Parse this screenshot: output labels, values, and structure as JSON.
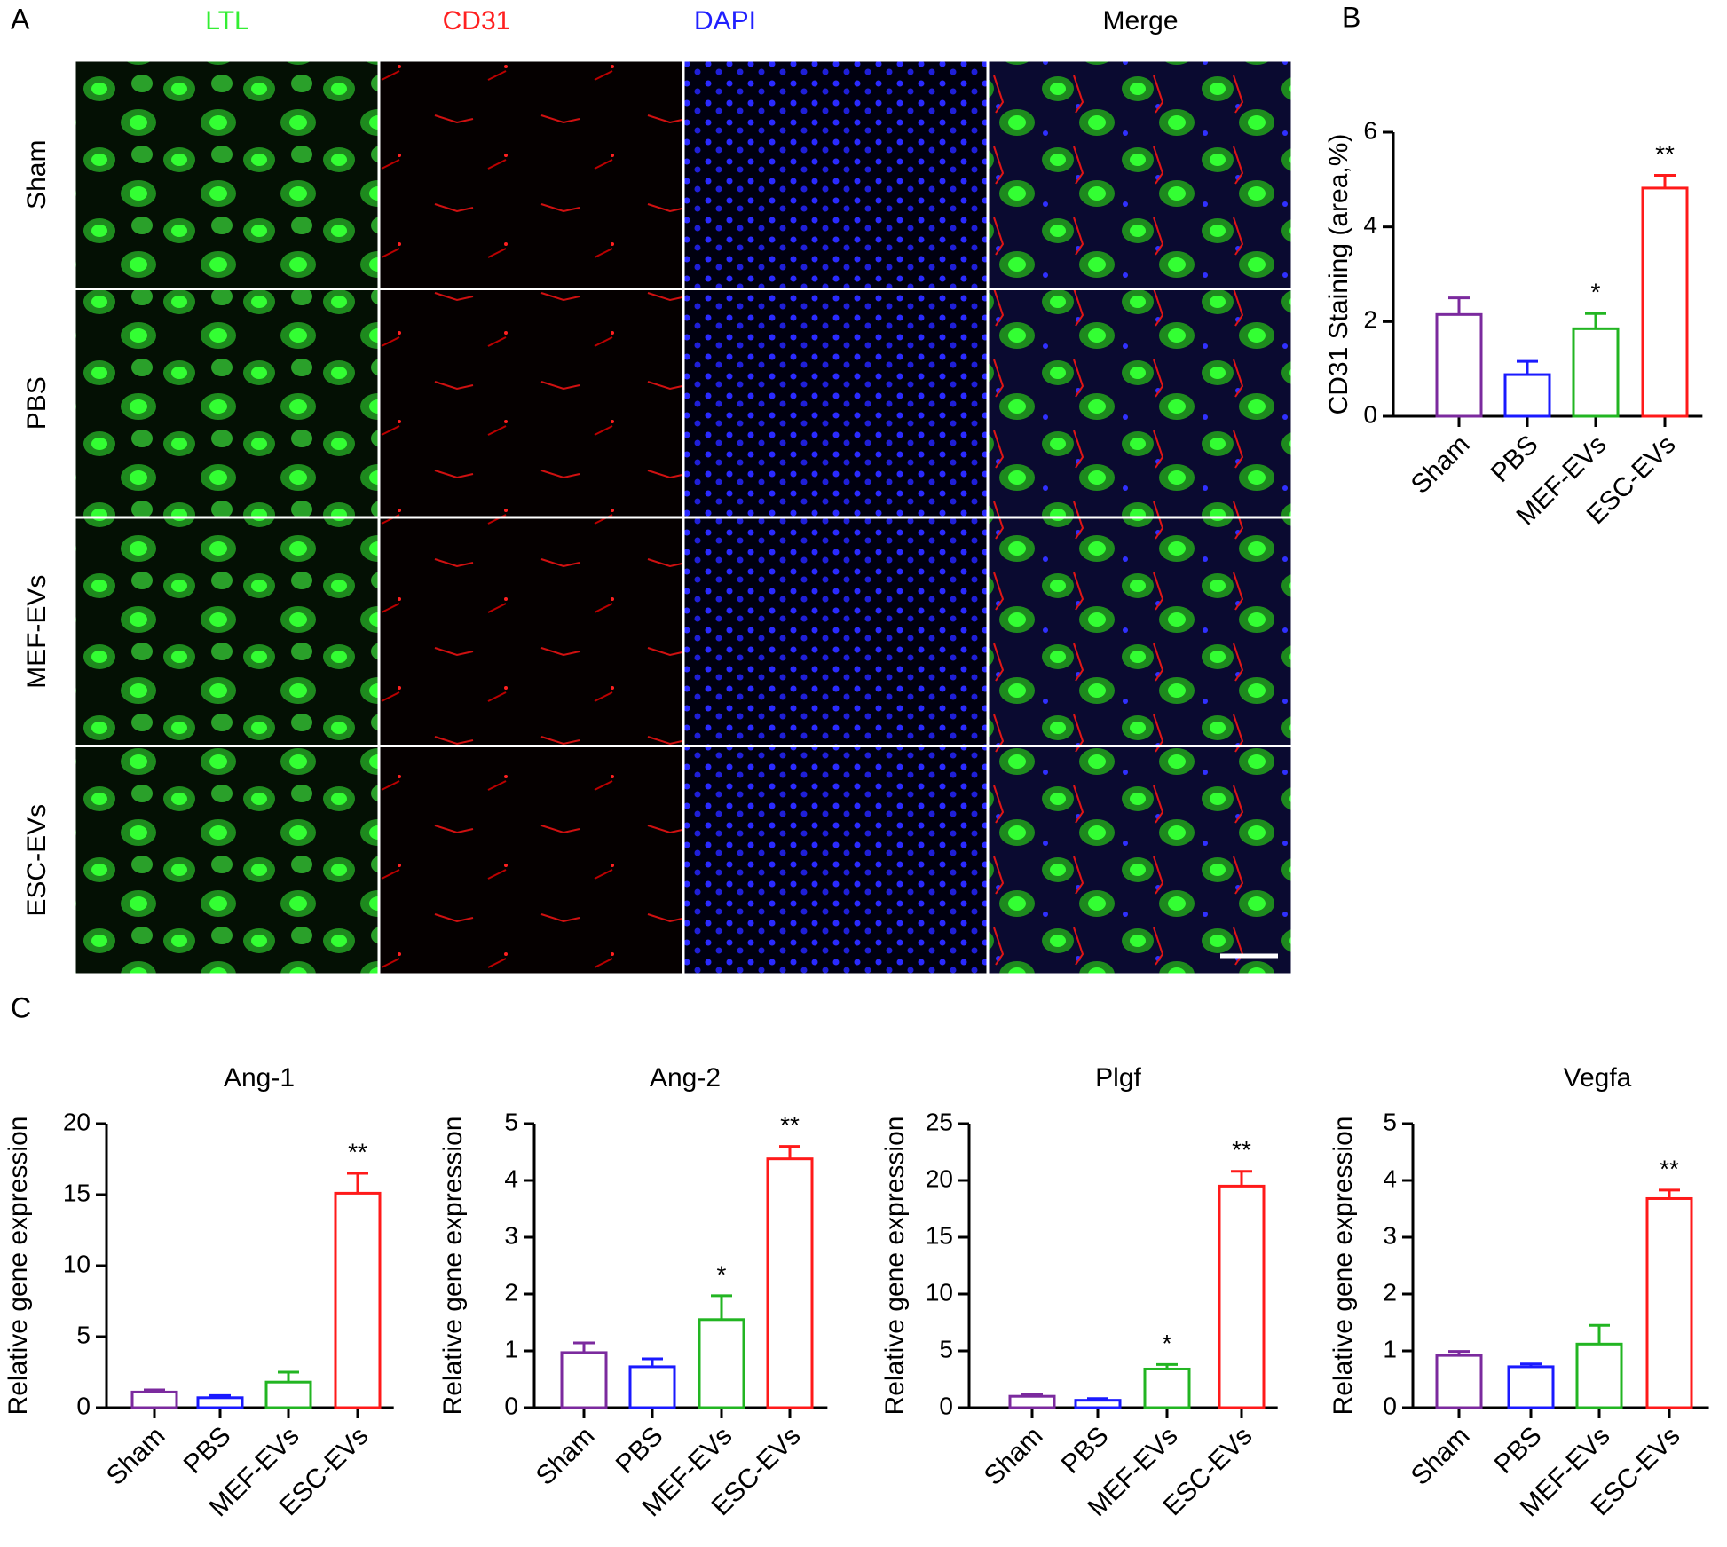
{
  "figure": {
    "panels": [
      "A",
      "B",
      "C"
    ],
    "columns": [
      "LTL",
      "CD31",
      "DAPI",
      "Merge"
    ],
    "column_colors": [
      "#33ee33",
      "#ff2020",
      "#2020ff",
      "#000000"
    ],
    "rows": [
      "Sham",
      "PBS",
      "MEF-EVs",
      "ESC-EVs"
    ]
  },
  "chart_data": [
    {
      "type": "bar",
      "ylabel": "CD31 Staining (area,%)",
      "categories": [
        "Sham",
        "PBS",
        "MEF-EVs",
        "ESC-EVs"
      ],
      "values": [
        2.15,
        0.88,
        1.85,
        4.82
      ],
      "errors": [
        0.35,
        0.28,
        0.32,
        0.27
      ],
      "colors": [
        "#7b2a9e",
        "#1a1aff",
        "#22b522",
        "#ff1a1a"
      ],
      "significance": [
        null,
        null,
        "*",
        "**"
      ],
      "ylim": [
        0,
        6
      ],
      "yticks": [
        0,
        2,
        4,
        6
      ]
    },
    {
      "type": "bar",
      "title": "Ang-1",
      "ylabel": "Relative gene expression",
      "categories": [
        "Sham",
        "PBS",
        "MEF-EVs",
        "ESC-EVs"
      ],
      "values": [
        1.1,
        0.7,
        1.8,
        15.1
      ],
      "errors": [
        0.15,
        0.15,
        0.7,
        1.4
      ],
      "colors": [
        "#7b2a9e",
        "#1a1aff",
        "#22b522",
        "#ff1a1a"
      ],
      "significance": [
        null,
        null,
        null,
        "**"
      ],
      "ylim": [
        0,
        20
      ],
      "yticks": [
        0,
        5,
        10,
        15,
        20
      ]
    },
    {
      "type": "bar",
      "title": "Ang-2",
      "ylabel": "Relative gene expression",
      "categories": [
        "Sham",
        "PBS",
        "MEF-EVs",
        "ESC-EVs"
      ],
      "values": [
        0.97,
        0.72,
        1.55,
        4.38
      ],
      "errors": [
        0.17,
        0.14,
        0.42,
        0.22
      ],
      "colors": [
        "#7b2a9e",
        "#1a1aff",
        "#22b522",
        "#ff1a1a"
      ],
      "significance": [
        null,
        null,
        "*",
        "**"
      ],
      "ylim": [
        0,
        5
      ],
      "yticks": [
        0,
        1,
        2,
        3,
        4,
        5
      ]
    },
    {
      "type": "bar",
      "title": "Plgf",
      "ylabel": "Relative gene expression",
      "categories": [
        "Sham",
        "PBS",
        "MEF-EVs",
        "ESC-EVs"
      ],
      "values": [
        1.0,
        0.65,
        3.4,
        19.5
      ],
      "errors": [
        0.15,
        0.15,
        0.4,
        1.3
      ],
      "colors": [
        "#7b2a9e",
        "#1a1aff",
        "#22b522",
        "#ff1a1a"
      ],
      "significance": [
        null,
        null,
        "*",
        "**"
      ],
      "ylim": [
        0,
        25
      ],
      "yticks": [
        0,
        5,
        10,
        15,
        20,
        25
      ]
    },
    {
      "type": "bar",
      "title": "Vegfa",
      "ylabel": "Relative gene expression",
      "categories": [
        "Sham",
        "PBS",
        "MEF-EVs",
        "ESC-EVs"
      ],
      "values": [
        0.92,
        0.72,
        1.12,
        3.68
      ],
      "errors": [
        0.07,
        0.05,
        0.33,
        0.15
      ],
      "colors": [
        "#7b2a9e",
        "#1a1aff",
        "#22b522",
        "#ff1a1a"
      ],
      "significance": [
        null,
        null,
        null,
        "**"
      ],
      "ylim": [
        0,
        5
      ],
      "yticks": [
        0,
        1,
        2,
        3,
        4,
        5
      ]
    }
  ]
}
